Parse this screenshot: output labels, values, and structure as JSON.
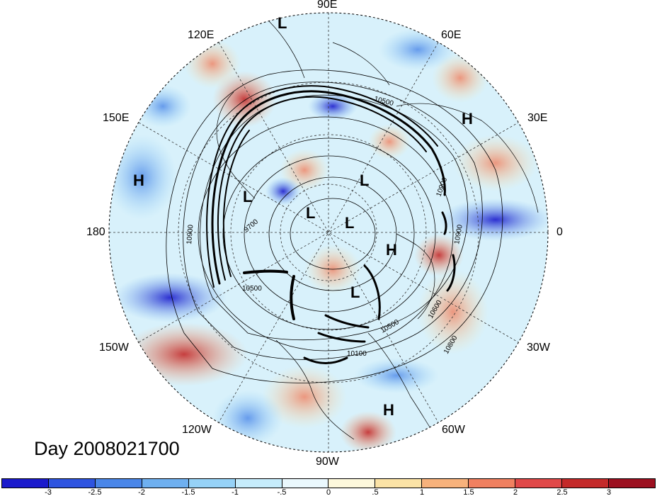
{
  "title": "Day 2008021700",
  "longitude_labels": {
    "deg0": "0",
    "deg30E": "30E",
    "deg60E": "60E",
    "deg90E": "90E",
    "deg120E": "120E",
    "deg150E": "150E",
    "deg180": "180",
    "deg150W": "150W",
    "deg120W": "120W",
    "deg90W": "90W",
    "deg60W": "60W",
    "deg30W": "30W"
  },
  "contour_labels": [
    "10900",
    "10500",
    "9700",
    "10500",
    "10600",
    "10800",
    "10500",
    "10100",
    "10900",
    "10900"
  ],
  "pressure_centers": [
    "L",
    "L",
    "L",
    "L",
    "L",
    "L",
    "H",
    "H",
    "H",
    "H"
  ],
  "colorbar": {
    "ticks": [
      "-3",
      "-2.5",
      "-2",
      "-1.5",
      "-1",
      "-.5",
      "0",
      ".5",
      "1",
      "1.5",
      "2",
      "2.5",
      "3"
    ],
    "colors": [
      "#1a1acc",
      "#2e54e0",
      "#4a86e8",
      "#6fb0f0",
      "#96d2f7",
      "#c6ecfb",
      "#eaf8fd",
      "#fdf8dc",
      "#fbe3a6",
      "#f7b27c",
      "#f08060",
      "#e04848",
      "#c42a2a",
      "#9c1020"
    ]
  }
}
